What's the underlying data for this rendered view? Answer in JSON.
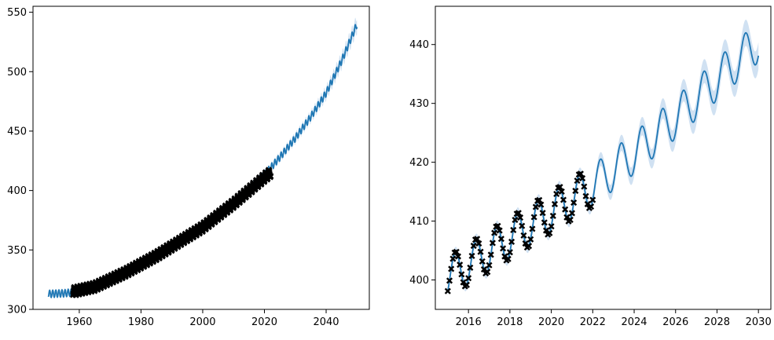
{
  "colors": {
    "line": "#1f77b4",
    "band": "#a9c9e8",
    "observed": "#000000",
    "axis": "#000000",
    "background": "#ffffff"
  },
  "chart_data": [
    {
      "type": "line",
      "title": "",
      "xlabel": "",
      "ylabel": "",
      "xlim": [
        1945,
        2054
      ],
      "ylim": [
        300,
        555
      ],
      "xticks": [
        1960,
        1980,
        2000,
        2020,
        2040
      ],
      "yticks": [
        300,
        350,
        400,
        450,
        500,
        550
      ],
      "grid": false,
      "series": [
        {
          "kind": "prediction-line-with-band",
          "x": [
            1950,
            1955,
            1960,
            1965,
            1970,
            1975,
            1980,
            1985,
            1990,
            1995,
            2000,
            2005,
            2010,
            2015,
            2020,
            2025,
            2030,
            2035,
            2040,
            2045,
            2050
          ],
          "y": [
            313,
            313.5,
            315,
            319,
            324,
            330,
            337,
            345,
            353,
            361,
            369,
            379,
            390,
            401,
            413,
            428,
            444,
            462,
            482,
            509,
            540
          ],
          "band": [
            1,
            1,
            1,
            1,
            1,
            1,
            1,
            1,
            1,
            1,
            1,
            1,
            1,
            1,
            1.5,
            2,
            2.5,
            3,
            4,
            5,
            6
          ],
          "seasonal_amplitude": 3
        },
        {
          "kind": "observed-markers",
          "marker": "x",
          "x_range": [
            1958,
            2022
          ],
          "y_trend": [
            [
              1958,
              315
            ],
            [
              1965,
              319
            ],
            [
              1970,
              325
            ],
            [
              1975,
              331
            ],
            [
              1980,
              338
            ],
            [
              1985,
              345
            ],
            [
              1990,
              353
            ],
            [
              1995,
              361
            ],
            [
              2000,
              369
            ],
            [
              2005,
              379
            ],
            [
              2010,
              389
            ],
            [
              2015,
              400
            ],
            [
              2020,
              411
            ],
            [
              2022,
              415
            ]
          ],
          "seasonal_amplitude": 3.5
        }
      ]
    },
    {
      "type": "line",
      "title": "",
      "xlabel": "",
      "ylabel": "",
      "xlim": [
        2014.4,
        2030.6
      ],
      "ylim": [
        395,
        446.5
      ],
      "xticks": [
        2016,
        2018,
        2020,
        2022,
        2024,
        2026,
        2028,
        2030
      ],
      "yticks": [
        400,
        410,
        420,
        430,
        440
      ],
      "grid": false,
      "series": [
        {
          "kind": "prediction-line-with-band",
          "x_range": [
            2015,
            2030
          ],
          "trend": [
            [
              2015,
              400.5
            ],
            [
              2020,
              411.5
            ],
            [
              2022,
              416
            ],
            [
              2024,
              421.5
            ],
            [
              2026,
              427.5
            ],
            [
              2028,
              434
            ],
            [
              2030,
              440.5
            ]
          ],
          "seasonal_amplitude": 3.5,
          "peak_phase": 0.37,
          "band": [
            [
              2015,
              0.8
            ],
            [
              2021.5,
              1
            ],
            [
              2024,
              1.5
            ],
            [
              2027,
              2
            ],
            [
              2030,
              2.3
            ]
          ]
        },
        {
          "kind": "observed-markers",
          "marker": "x",
          "x_range": [
            2015,
            2022
          ],
          "trend": [
            [
              2015,
              400.5
            ],
            [
              2020,
              411.5
            ],
            [
              2022,
              416
            ]
          ],
          "seasonal_amplitude": 3.5,
          "peak_phase": 0.37
        }
      ]
    }
  ]
}
